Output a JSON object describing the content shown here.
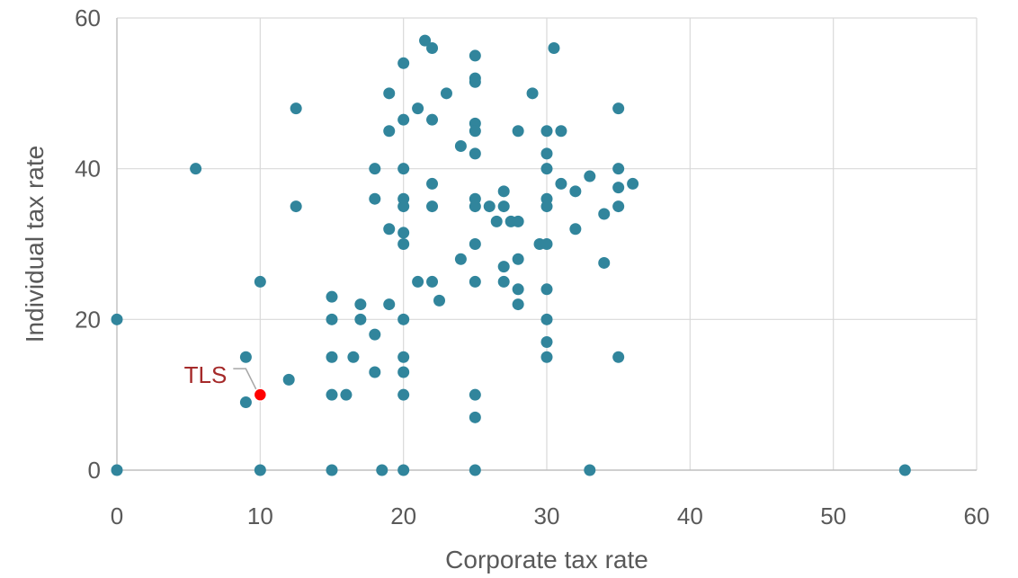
{
  "chart_data": {
    "type": "scatter",
    "title": "",
    "xlabel": "Corporate tax rate",
    "ylabel": "Individual tax rate",
    "xlim": [
      0,
      60
    ],
    "ylim": [
      0,
      60
    ],
    "xticks": [
      0,
      10,
      20,
      30,
      40,
      50,
      60
    ],
    "yticks": [
      0,
      20,
      40,
      60
    ],
    "grid": true,
    "colors": {
      "point": "#31859c",
      "highlight": "#ff0000",
      "highlight_label": "#a52a2a",
      "grid": "#d9d9d9"
    },
    "points": [
      [
        0,
        20
      ],
      [
        0,
        0
      ],
      [
        5.5,
        40
      ],
      [
        9,
        15
      ],
      [
        9,
        9
      ],
      [
        10,
        25
      ],
      [
        10,
        0
      ],
      [
        12,
        12
      ],
      [
        12.5,
        48
      ],
      [
        12.5,
        35
      ],
      [
        15,
        23
      ],
      [
        15,
        20
      ],
      [
        15,
        15
      ],
      [
        15,
        10
      ],
      [
        15,
        0
      ],
      [
        16,
        10
      ],
      [
        16.5,
        15
      ],
      [
        17,
        22
      ],
      [
        17,
        20
      ],
      [
        18,
        40
      ],
      [
        18,
        36
      ],
      [
        18,
        18
      ],
      [
        18,
        13
      ],
      [
        18.5,
        0
      ],
      [
        19,
        50
      ],
      [
        19,
        45
      ],
      [
        19,
        32
      ],
      [
        19,
        22
      ],
      [
        20,
        54
      ],
      [
        20,
        46.5
      ],
      [
        20,
        40
      ],
      [
        20,
        36
      ],
      [
        20,
        35
      ],
      [
        20,
        31.5
      ],
      [
        20,
        30
      ],
      [
        20,
        20
      ],
      [
        20,
        15
      ],
      [
        20,
        13
      ],
      [
        20,
        10
      ],
      [
        20,
        0
      ],
      [
        21,
        48
      ],
      [
        21,
        25
      ],
      [
        21.5,
        57
      ],
      [
        22,
        56
      ],
      [
        22,
        46.5
      ],
      [
        22,
        38
      ],
      [
        22,
        35
      ],
      [
        22,
        25
      ],
      [
        22.5,
        22.5
      ],
      [
        23,
        50
      ],
      [
        24,
        43
      ],
      [
        24,
        28
      ],
      [
        25,
        55
      ],
      [
        25,
        52
      ],
      [
        25,
        51.5
      ],
      [
        25,
        46
      ],
      [
        25,
        45
      ],
      [
        25,
        42
      ],
      [
        25,
        36
      ],
      [
        25,
        35
      ],
      [
        25,
        30
      ],
      [
        25,
        25
      ],
      [
        25,
        10
      ],
      [
        25,
        7
      ],
      [
        25,
        0
      ],
      [
        26,
        35
      ],
      [
        26.5,
        33
      ],
      [
        27,
        37
      ],
      [
        27,
        35
      ],
      [
        27,
        27
      ],
      [
        27,
        25
      ],
      [
        27.5,
        33
      ],
      [
        28,
        45
      ],
      [
        28,
        33
      ],
      [
        28,
        28
      ],
      [
        28,
        24
      ],
      [
        28,
        22
      ],
      [
        29,
        50
      ],
      [
        29.5,
        30
      ],
      [
        30,
        45
      ],
      [
        30,
        42
      ],
      [
        30,
        40
      ],
      [
        30,
        36
      ],
      [
        30,
        35
      ],
      [
        30,
        30
      ],
      [
        30,
        24
      ],
      [
        30,
        20
      ],
      [
        30,
        17
      ],
      [
        30,
        15
      ],
      [
        30.5,
        56
      ],
      [
        31,
        45
      ],
      [
        31,
        38
      ],
      [
        32,
        37
      ],
      [
        32,
        32
      ],
      [
        33,
        39
      ],
      [
        33,
        0
      ],
      [
        34,
        34
      ],
      [
        34,
        27.5
      ],
      [
        35,
        48
      ],
      [
        35,
        40
      ],
      [
        35,
        37.5
      ],
      [
        35,
        35
      ],
      [
        35,
        15
      ],
      [
        36,
        38
      ],
      [
        55,
        0
      ]
    ],
    "highlight": {
      "label": "TLS",
      "x": 10,
      "y": 10
    }
  }
}
